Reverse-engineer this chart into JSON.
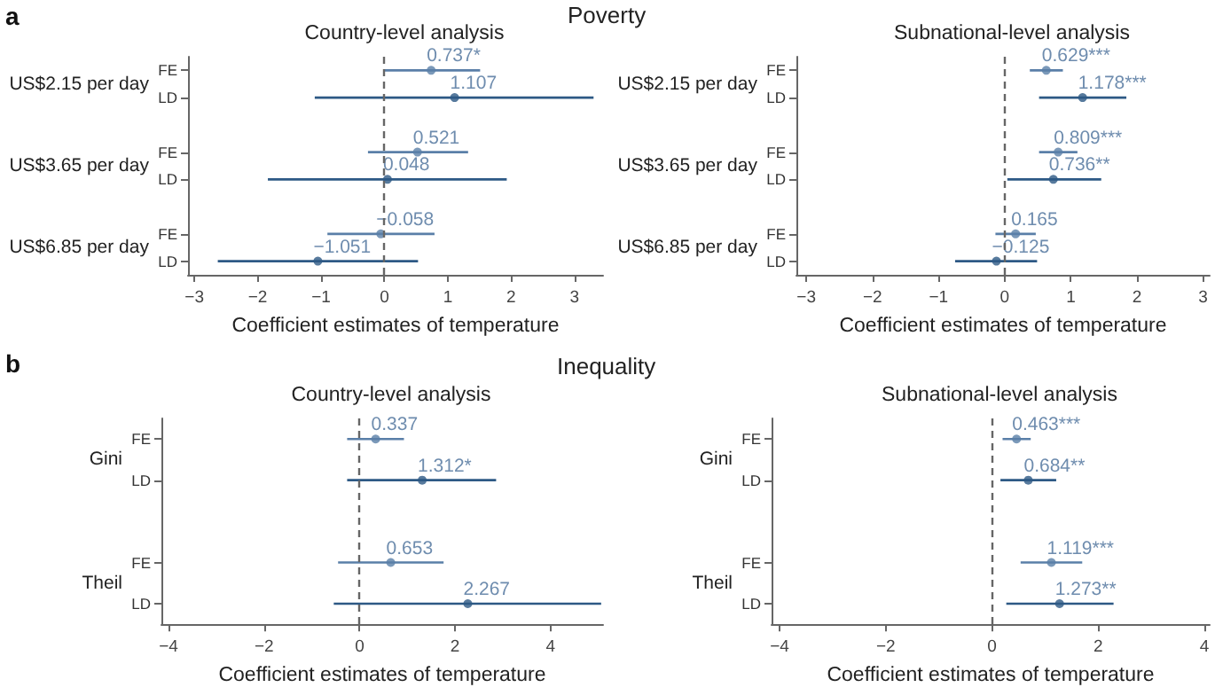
{
  "chart_data": [
    {
      "type": "scatter",
      "orientation": "horizontal",
      "title": "Country-level analysis",
      "xlabel": "Coefficient estimates of temperature",
      "marker": "circle",
      "annotations": [
        "a",
        "Poverty",
        "US$2.15 per day",
        "US$3.65 per day",
        "US$6.85 per day"
      ],
      "categories": [
        "FE",
        "LD",
        null,
        "FE",
        "LD",
        null,
        "FE",
        "LD"
      ],
      "values": [
        0.737,
        1.107,
        null,
        0.521,
        0.048,
        null,
        -0.058,
        -1.051
      ],
      "errors": [
        [
          -0.02,
          1.51
        ],
        [
          -1.1,
          3.3
        ],
        null,
        [
          -0.26,
          1.32
        ],
        [
          -1.84,
          1.93
        ],
        null,
        [
          -0.9,
          0.79
        ],
        [
          -2.63,
          0.53
        ]
      ],
      "value_labels": [
        "0.737*",
        "1.107",
        null,
        "0.521",
        "0.048",
        null,
        "−0.058",
        "−1.051"
      ],
      "colors": [
        "#5a7fa8",
        "#2d5985",
        null,
        "#5a7fa8",
        "#2d5985",
        null,
        "#5a7fa8",
        "#2d5985"
      ],
      "xlim": [
        -3.1,
        3.45
      ],
      "xticks": [
        {
          "value": -3,
          "label": "−3"
        },
        {
          "value": -2,
          "label": "−2"
        },
        {
          "value": -1,
          "label": "−1"
        },
        0,
        1,
        2,
        3
      ],
      "ref_lines": [
        {
          "axis": "x",
          "value": 0,
          "color": "#666666",
          "line_style": "dashed"
        }
      ]
    },
    {
      "type": "scatter",
      "orientation": "horizontal",
      "title": "Subnational-level analysis",
      "xlabel": "Coefficient estimates of temperature",
      "marker": "circle",
      "annotations": [
        "US$2.15 per day",
        "US$3.65 per day",
        "US$6.85 per day"
      ],
      "categories": [
        "FE",
        "LD",
        null,
        "FE",
        "LD",
        null,
        "FE",
        "LD"
      ],
      "values": [
        0.629,
        1.178,
        null,
        0.809,
        0.736,
        null,
        0.165,
        -0.125
      ],
      "errors": [
        [
          0.38,
          0.88
        ],
        [
          0.52,
          1.84
        ],
        null,
        [
          0.52,
          1.1
        ],
        [
          0.04,
          1.46
        ],
        null,
        [
          -0.14,
          0.47
        ],
        [
          -0.75,
          0.49
        ]
      ],
      "value_labels": [
        "0.629***",
        "1.178***",
        null,
        "0.809***",
        "0.736**",
        null,
        "0.165",
        "−0.125"
      ],
      "colors": [
        "#5a7fa8",
        "#2d5985",
        null,
        "#5a7fa8",
        "#2d5985",
        null,
        "#5a7fa8",
        "#2d5985"
      ],
      "xlim": [
        -3.15,
        3.1
      ],
      "xticks": [
        {
          "value": -3,
          "label": "−3"
        },
        {
          "value": -2,
          "label": "−2"
        },
        {
          "value": -1,
          "label": "−1"
        },
        0,
        1,
        2,
        3
      ],
      "ref_lines": [
        {
          "axis": "x",
          "value": 0,
          "color": "#666666",
          "line_style": "dashed"
        }
      ]
    },
    {
      "type": "scatter",
      "orientation": "horizontal",
      "title": "Country-level analysis",
      "xlabel": "Coefficient estimates of temperature",
      "marker": "circle",
      "annotations": [
        "b",
        "Inequality",
        "Gini",
        "Theil"
      ],
      "categories": [
        "FE",
        "LD",
        null,
        "FE",
        "LD"
      ],
      "values": [
        0.337,
        1.312,
        null,
        0.653,
        2.267
      ],
      "errors": [
        [
          -0.26,
          0.93
        ],
        [
          -0.26,
          2.86
        ],
        null,
        [
          -0.45,
          1.76
        ],
        [
          -0.54,
          5.06
        ]
      ],
      "value_labels": [
        "0.337",
        "1.312*",
        null,
        "0.653",
        "2.267"
      ],
      "colors": [
        "#5a7fa8",
        "#2d5985",
        null,
        "#5a7fa8",
        "#2d5985"
      ],
      "xlim": [
        -4.15,
        5.1
      ],
      "xticks": [
        {
          "value": -4,
          "label": "−4"
        },
        {
          "value": -2,
          "label": "−2"
        },
        0,
        2,
        4
      ],
      "ref_lines": [
        {
          "axis": "x",
          "value": 0,
          "color": "#666666",
          "line_style": "dashed"
        }
      ]
    },
    {
      "type": "scatter",
      "orientation": "horizontal",
      "title": "Subnational-level analysis",
      "xlabel": "Coefficient estimates of temperature",
      "marker": "circle",
      "annotations": [
        "Gini",
        "Theil"
      ],
      "categories": [
        "FE",
        "LD",
        null,
        "FE",
        "LD"
      ],
      "values": [
        0.463,
        0.684,
        null,
        1.119,
        1.273
      ],
      "errors": [
        [
          0.2,
          0.73
        ],
        [
          0.16,
          1.21
        ],
        null,
        [
          0.54,
          1.7
        ],
        [
          0.27,
          2.29
        ]
      ],
      "value_labels": [
        "0.463***",
        "0.684**",
        null,
        "1.119***",
        "1.273**"
      ],
      "colors": [
        "#5a7fa8",
        "#2d5985",
        null,
        "#5a7fa8",
        "#2d5985"
      ],
      "xlim": [
        -4.15,
        4.1
      ],
      "xticks": [
        {
          "value": -4,
          "label": "−4"
        },
        {
          "value": -2,
          "label": "−2"
        },
        0,
        2,
        4
      ],
      "ref_lines": [
        {
          "axis": "x",
          "value": 0,
          "color": "#666666",
          "line_style": "dashed"
        }
      ]
    }
  ]
}
